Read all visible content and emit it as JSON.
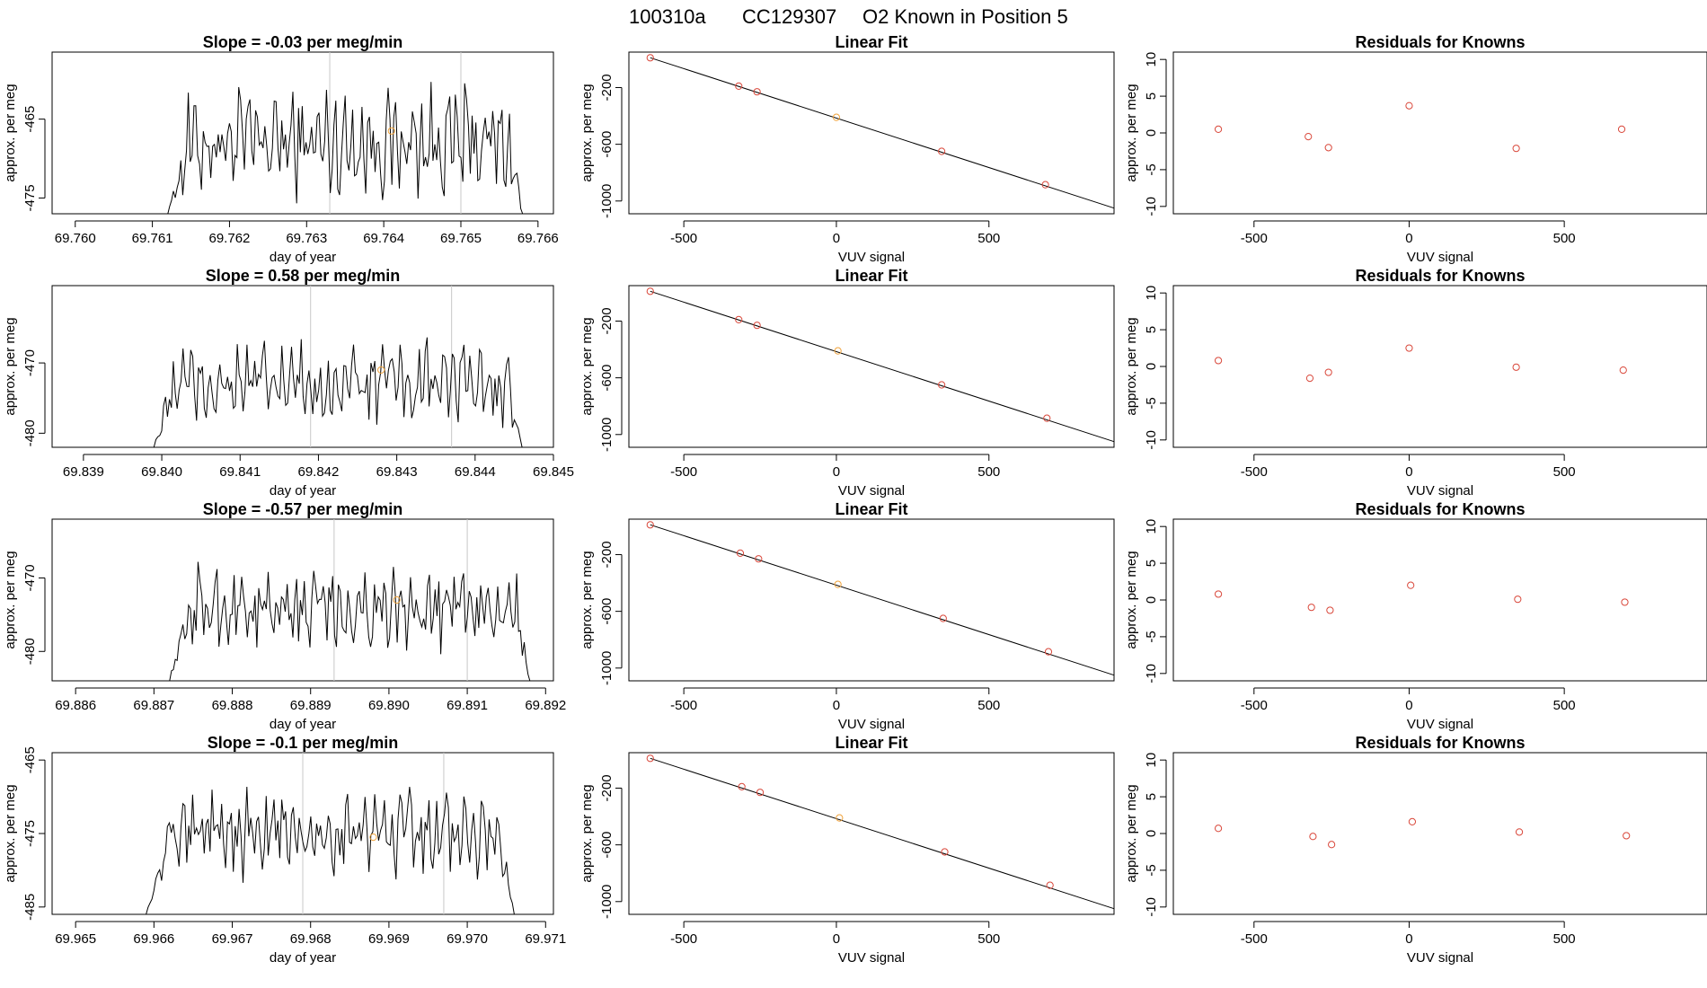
{
  "title": {
    "run_id": "100310a",
    "cylinder": "CC129307",
    "label": "O2 Known in Position  5"
  },
  "colors": {
    "points": "#d9473a",
    "highlight": "#f0a23a",
    "trace": "#000000",
    "vlines": "#c8c8c8"
  },
  "chart_data": [
    {
      "row": 1,
      "type": "line",
      "title": "Slope =  -0.03  per meg/min",
      "xlabel": "day of year",
      "ylabel": "approx. per meg",
      "xlim": [
        69.7597,
        69.7662
      ],
      "ylim": [
        -477,
        -456.5
      ],
      "xticks": [
        "69.760",
        "69.761",
        "69.762",
        "69.763",
        "69.764",
        "69.765",
        "69.766"
      ],
      "yticks": [
        -465,
        -475
      ],
      "vlines": [
        69.7633,
        69.765
      ],
      "series_start": 69.7612,
      "series_end": 69.7658,
      "baseline": -468,
      "amplitude": 6,
      "highlight_point": {
        "x": 69.7641,
        "y": -466.5
      }
    },
    {
      "row": 1,
      "type": "scatter",
      "title": "Linear Fit",
      "xlabel": "VUV signal",
      "ylabel": "approx. per meg",
      "xlim": [
        -680,
        910
      ],
      "ylim": [
        -1090,
        50
      ],
      "xticks": [
        -500,
        0,
        500
      ],
      "yticks": [
        -200,
        -600,
        -1000
      ],
      "fit_line": {
        "x": [
          -610,
          910
        ],
        "y": [
          10,
          -1050
        ]
      },
      "points": [
        {
          "x": -610,
          "y": 10
        },
        {
          "x": -320,
          "y": -190
        },
        {
          "x": -260,
          "y": -230
        },
        {
          "x": 0,
          "y": -410
        },
        {
          "x": 345,
          "y": -650
        },
        {
          "x": 685,
          "y": -885
        }
      ],
      "highlight_index": 3
    },
    {
      "row": 1,
      "type": "scatter",
      "title": "Residuals for Knowns",
      "xlabel": "VUV signal",
      "ylabel": "approx. per meg",
      "xlim": [
        -760,
        960
      ],
      "ylim": [
        -11,
        11
      ],
      "xticks": [
        -500,
        0,
        500
      ],
      "yticks": [
        10,
        5,
        0,
        -5,
        -10
      ],
      "points": [
        {
          "x": -615,
          "y": 0.5
        },
        {
          "x": -325,
          "y": -0.5
        },
        {
          "x": -260,
          "y": -2.0
        },
        {
          "x": 0,
          "y": 3.7
        },
        {
          "x": 345,
          "y": -2.1
        },
        {
          "x": 685,
          "y": 0.5
        }
      ]
    },
    {
      "row": 2,
      "type": "line",
      "title": "Slope =  0.58  per meg/min",
      "xlabel": "day of year",
      "ylabel": "approx. per meg",
      "xlim": [
        69.8386,
        69.845
      ],
      "ylim": [
        -482,
        -459
      ],
      "xticks": [
        "69.839",
        "69.840",
        "69.841",
        "69.842",
        "69.843",
        "69.844",
        "69.845"
      ],
      "yticks": [
        -470,
        -480
      ],
      "vlines": [
        69.8419,
        69.8437
      ],
      "series_start": 69.8399,
      "series_end": 69.8446,
      "baseline": -473,
      "amplitude": 5,
      "highlight_point": {
        "x": 69.8428,
        "y": -471
      }
    },
    {
      "row": 2,
      "type": "scatter",
      "title": "Linear Fit",
      "xlabel": "VUV signal",
      "ylabel": "approx. per meg",
      "xlim": [
        -680,
        910
      ],
      "ylim": [
        -1090,
        50
      ],
      "xticks": [
        -500,
        0,
        500
      ],
      "yticks": [
        -200,
        -600,
        -1000
      ],
      "fit_line": {
        "x": [
          -610,
          910
        ],
        "y": [
          10,
          -1050
        ]
      },
      "points": [
        {
          "x": -610,
          "y": 10
        },
        {
          "x": -320,
          "y": -190
        },
        {
          "x": -260,
          "y": -230
        },
        {
          "x": 5,
          "y": -410
        },
        {
          "x": 345,
          "y": -650
        },
        {
          "x": 690,
          "y": -885
        }
      ],
      "highlight_index": 3
    },
    {
      "row": 2,
      "type": "scatter",
      "title": "Residuals for Knowns",
      "xlabel": "VUV signal",
      "ylabel": "approx. per meg",
      "xlim": [
        -760,
        960
      ],
      "ylim": [
        -11,
        11
      ],
      "xticks": [
        -500,
        0,
        500
      ],
      "yticks": [
        10,
        5,
        0,
        -5,
        -10
      ],
      "points": [
        {
          "x": -615,
          "y": 0.8
        },
        {
          "x": -320,
          "y": -1.6
        },
        {
          "x": -260,
          "y": -0.8
        },
        {
          "x": 0,
          "y": 2.5
        },
        {
          "x": 345,
          "y": -0.1
        },
        {
          "x": 690,
          "y": -0.5
        }
      ]
    },
    {
      "row": 3,
      "type": "line",
      "title": "Slope =  -0.57  per meg/min",
      "xlabel": "day of year",
      "ylabel": "approx. per meg",
      "xlim": [
        69.8857,
        69.8921
      ],
      "ylim": [
        -484,
        -462
      ],
      "xticks": [
        "69.886",
        "69.887",
        "69.888",
        "69.889",
        "69.890",
        "69.891",
        "69.892"
      ],
      "yticks": [
        -470,
        -480
      ],
      "vlines": [
        69.8893,
        69.891
      ],
      "series_start": 69.8872,
      "series_end": 69.8918,
      "baseline": -474,
      "amplitude": 5,
      "highlight_point": {
        "x": 69.8901,
        "y": -473
      }
    },
    {
      "row": 3,
      "type": "scatter",
      "title": "Linear Fit",
      "xlabel": "VUV signal",
      "ylabel": "approx. per meg",
      "xlim": [
        -680,
        910
      ],
      "ylim": [
        -1090,
        50
      ],
      "xticks": [
        -500,
        0,
        500
      ],
      "yticks": [
        -200,
        -600,
        -1000
      ],
      "fit_line": {
        "x": [
          -610,
          910
        ],
        "y": [
          10,
          -1050
        ]
      },
      "points": [
        {
          "x": -610,
          "y": 10
        },
        {
          "x": -315,
          "y": -190
        },
        {
          "x": -255,
          "y": -230
        },
        {
          "x": 5,
          "y": -410
        },
        {
          "x": 350,
          "y": -650
        },
        {
          "x": 695,
          "y": -885
        }
      ],
      "highlight_index": 3
    },
    {
      "row": 3,
      "type": "scatter",
      "title": "Residuals for Knowns",
      "xlabel": "VUV signal",
      "ylabel": "approx. per meg",
      "xlim": [
        -760,
        960
      ],
      "ylim": [
        -11,
        11
      ],
      "xticks": [
        -500,
        0,
        500
      ],
      "yticks": [
        10,
        5,
        0,
        -5,
        -10
      ],
      "points": [
        {
          "x": -615,
          "y": 0.8
        },
        {
          "x": -315,
          "y": -1.0
        },
        {
          "x": -255,
          "y": -1.4
        },
        {
          "x": 5,
          "y": 2.0
        },
        {
          "x": 350,
          "y": 0.1
        },
        {
          "x": 695,
          "y": -0.3
        }
      ]
    },
    {
      "row": 4,
      "type": "line",
      "title": "Slope =  -0.1  per meg/min",
      "xlabel": "day of year",
      "ylabel": "approx. per meg",
      "xlim": [
        69.9647,
        69.9711
      ],
      "ylim": [
        -486,
        -464
      ],
      "xticks": [
        "69.965",
        "69.966",
        "69.967",
        "69.968",
        "69.969",
        "69.970",
        "69.971"
      ],
      "yticks": [
        -465,
        -475,
        -485
      ],
      "vlines": [
        69.9679,
        69.9697
      ],
      "series_start": 69.9659,
      "series_end": 69.9706,
      "baseline": -475,
      "amplitude": 5,
      "highlight_point": {
        "x": 69.9688,
        "y": -475.5
      }
    },
    {
      "row": 4,
      "type": "scatter",
      "title": "Linear Fit",
      "xlabel": "VUV signal",
      "ylabel": "approx. per meg",
      "xlim": [
        -680,
        910
      ],
      "ylim": [
        -1090,
        50
      ],
      "xticks": [
        -500,
        0,
        500
      ],
      "yticks": [
        -200,
        -600,
        -1000
      ],
      "fit_line": {
        "x": [
          -610,
          910
        ],
        "y": [
          10,
          -1050
        ]
      },
      "points": [
        {
          "x": -610,
          "y": 10
        },
        {
          "x": -310,
          "y": -190
        },
        {
          "x": -250,
          "y": -230
        },
        {
          "x": 10,
          "y": -410
        },
        {
          "x": 355,
          "y": -650
        },
        {
          "x": 700,
          "y": -885
        }
      ],
      "highlight_index": 3
    },
    {
      "row": 4,
      "type": "scatter",
      "title": "Residuals for Knowns",
      "xlabel": "VUV signal",
      "ylabel": "approx. per meg",
      "xlim": [
        -760,
        960
      ],
      "ylim": [
        -11,
        11
      ],
      "xticks": [
        -500,
        0,
        500
      ],
      "yticks": [
        10,
        5,
        0,
        -5,
        -10
      ],
      "points": [
        {
          "x": -615,
          "y": 0.7
        },
        {
          "x": -310,
          "y": -0.4
        },
        {
          "x": -250,
          "y": -1.5
        },
        {
          "x": 10,
          "y": 1.6
        },
        {
          "x": 355,
          "y": 0.2
        },
        {
          "x": 700,
          "y": -0.3
        }
      ]
    }
  ]
}
